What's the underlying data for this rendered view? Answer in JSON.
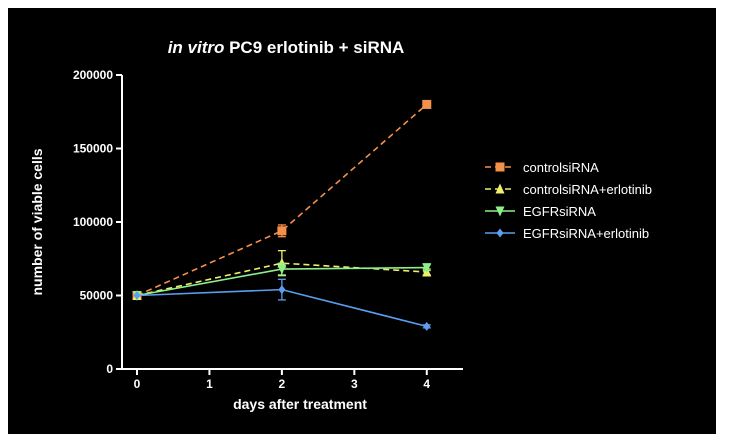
{
  "chart_data": {
    "type": "line",
    "title_italic": "in vitro",
    "title_rest": " PC9 erlotinib + siRNA",
    "xlabel": "days after treatment",
    "ylabel": "number of viable cells",
    "xlim": [
      0,
      4.5
    ],
    "ylim": [
      0,
      200000
    ],
    "x_ticks": [
      0,
      1,
      2,
      3,
      4
    ],
    "y_ticks": [
      0,
      50000,
      100000,
      150000,
      200000
    ],
    "grid": false,
    "legend_position": "right",
    "background": "#000000",
    "series": [
      {
        "name": "controlsiRNA",
        "color": "#f5904a",
        "marker": "square",
        "dashed": true,
        "x": [
          0,
          2,
          4
        ],
        "y": [
          50000,
          94000,
          180000
        ],
        "err": [
          0,
          4000,
          2500
        ]
      },
      {
        "name": "controlsiRNA+erlotinib",
        "color": "#eef06a",
        "marker": "triangle-up",
        "dashed": true,
        "x": [
          0,
          2,
          4
        ],
        "y": [
          50000,
          72000,
          66000
        ],
        "err": [
          0,
          8500,
          2000
        ]
      },
      {
        "name": "EGFRsiRNA",
        "color": "#8df08a",
        "marker": "triangle-down",
        "dashed": false,
        "x": [
          0,
          2,
          4
        ],
        "y": [
          50000,
          68000,
          69000
        ],
        "err": [
          0,
          4000,
          2000
        ]
      },
      {
        "name": "EGFRsiRNA+erlotinib",
        "color": "#5b9ef0",
        "marker": "diamond",
        "dashed": false,
        "x": [
          0,
          2,
          4
        ],
        "y": [
          50000,
          54000,
          29000
        ],
        "err": [
          0,
          7000,
          1000
        ]
      }
    ]
  }
}
